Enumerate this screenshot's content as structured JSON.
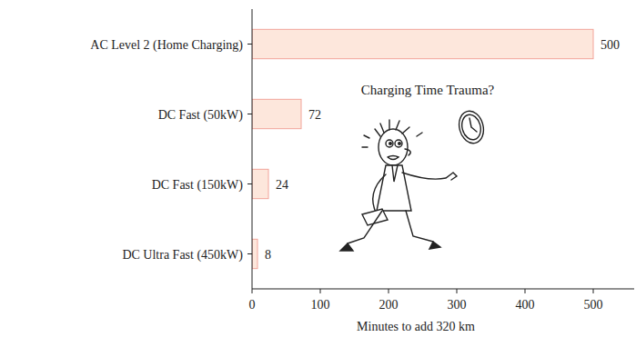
{
  "chart_data": {
    "type": "bar",
    "orientation": "horizontal",
    "annotation": "Charging Time Trauma?",
    "x_label": "Minutes to add 320 km",
    "categories": [
      "AC Level 2 (Home Charging)",
      "DC Fast (50kW)",
      "DC Fast (150kW)",
      "DC Ultra Fast (450kW)"
    ],
    "values": [
      500,
      72,
      24,
      8
    ],
    "color": "#fde7dc",
    "xlim": [
      0,
      560
    ],
    "xticks": [
      0,
      100,
      200,
      300,
      400,
      500
    ],
    "data_labels": true,
    "grid": false
  }
}
